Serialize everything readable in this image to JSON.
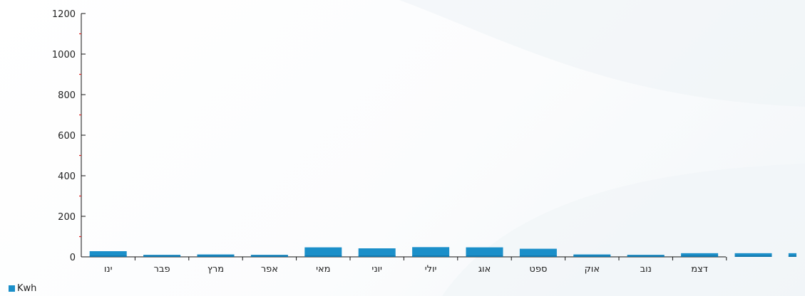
{
  "chart_data": {
    "type": "bar",
    "categories": [
      "ינו",
      "פבר",
      "מרץ",
      "אפר",
      "מאי",
      "יוני",
      "יולי",
      "אוג",
      "ספט",
      "אוק",
      "נוב",
      "דצמ",
      "",
      ""
    ],
    "series": [
      {
        "name": "Kwh",
        "color": "#1b8fc9",
        "values": [
          28,
          10,
          12,
          10,
          47,
          42,
          48,
          47,
          40,
          12,
          10,
          18,
          18,
          18
        ]
      }
    ],
    "y_ticks": [
      0,
      200,
      400,
      600,
      800,
      1000,
      1200
    ],
    "ylim": [
      0,
      1200
    ],
    "grid": false,
    "legend_position": "bottom-left"
  }
}
